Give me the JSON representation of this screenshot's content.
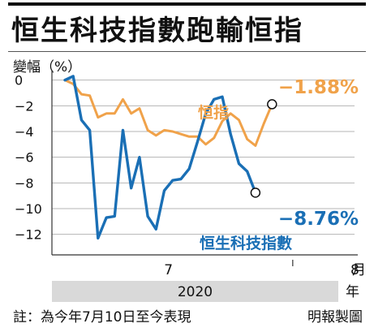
{
  "title": "恒生科技指數跑輸恒指",
  "y_unit_label": "變幅（%）",
  "footnote": "註：為今年7月10日至今表現",
  "credit": "明報製圖",
  "colors": {
    "hsi": "#f0a24a",
    "hstech": "#1a6fb5",
    "axis": "#333333",
    "band": "#d9d9d9"
  },
  "chart_data": {
    "type": "line",
    "title": "恒生科技指數跑輸恒指",
    "ylabel": "變幅（%）",
    "xlabel": "2020",
    "x_unit": "月",
    "y_ticks": [
      "0",
      "−2",
      "−4",
      "−6",
      "−8",
      "−10",
      "−12"
    ],
    "ylim": [
      -13.6,
      0.8
    ],
    "x_tick_labels": [
      {
        "label": "7",
        "day": 12.5
      },
      {
        "label": "8",
        "day": 35
      }
    ],
    "month_divider_day": 27.5,
    "year_label": "2020",
    "year_unit": "年",
    "grid": true,
    "series": [
      {
        "name": "恒指",
        "end_label": "−1.88%",
        "values": [
          [
            0,
            0
          ],
          [
            1,
            -0.3
          ],
          [
            2,
            -1.1
          ],
          [
            3,
            -1.2
          ],
          [
            4,
            -2.9
          ],
          [
            5,
            -2.6
          ],
          [
            6,
            -2.6
          ],
          [
            7,
            -1.5
          ],
          [
            8,
            -2.6
          ],
          [
            9,
            -2.2
          ],
          [
            10,
            -3.9
          ],
          [
            11,
            -4.3
          ],
          [
            12,
            -3.9
          ],
          [
            13,
            -4.0
          ],
          [
            14,
            -4.2
          ],
          [
            15,
            -4.4
          ],
          [
            16,
            -4.4
          ],
          [
            17,
            -5.0
          ],
          [
            18,
            -4.5
          ],
          [
            19,
            -3.2
          ],
          [
            20,
            -2.6
          ],
          [
            21,
            -3.1
          ],
          [
            22,
            -4.6
          ],
          [
            23,
            -5.1
          ],
          [
            24,
            -3.4
          ],
          [
            25,
            -1.88
          ]
        ]
      },
      {
        "name": "恒生科技指數",
        "end_label": "−8.76%",
        "values": [
          [
            0,
            0
          ],
          [
            1,
            0.3
          ],
          [
            2,
            -3.1
          ],
          [
            3,
            -3.9
          ],
          [
            4,
            -12.3
          ],
          [
            5,
            -10.7
          ],
          [
            6,
            -10.6
          ],
          [
            7,
            -3.9
          ],
          [
            8,
            -8.4
          ],
          [
            9,
            -6.0
          ],
          [
            10,
            -10.6
          ],
          [
            11,
            -11.6
          ],
          [
            12,
            -8.6
          ],
          [
            13,
            -7.8
          ],
          [
            14,
            -7.7
          ],
          [
            15,
            -6.9
          ],
          [
            16,
            -4.8
          ],
          [
            17,
            -2.6
          ],
          [
            18,
            -1.5
          ],
          [
            19,
            -1.3
          ],
          [
            20,
            -4.2
          ],
          [
            21,
            -6.5
          ],
          [
            22,
            -7.1
          ],
          [
            23,
            -8.76
          ]
        ]
      }
    ]
  }
}
